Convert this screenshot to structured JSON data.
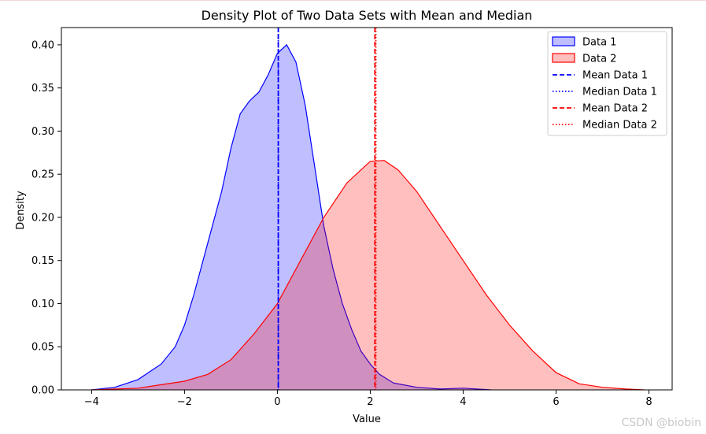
{
  "chart_data": {
    "type": "area",
    "title": "Density Plot of Two Data Sets with Mean and Median",
    "xlabel": "Value",
    "ylabel": "Density",
    "xlim": [
      -4.65,
      8.5
    ],
    "ylim": [
      0,
      0.42
    ],
    "xticks": [
      -4,
      -2,
      0,
      2,
      4,
      6,
      8
    ],
    "yticks": [
      0.0,
      0.05,
      0.1,
      0.15,
      0.2,
      0.25,
      0.3,
      0.35,
      0.4
    ],
    "xtick_labels": [
      "−4",
      "−2",
      "0",
      "2",
      "4",
      "6",
      "8"
    ],
    "ytick_labels": [
      "0.00",
      "0.05",
      "0.10",
      "0.15",
      "0.20",
      "0.25",
      "0.30",
      "0.35",
      "0.40"
    ],
    "grid": false,
    "legend_position": "top-right",
    "series": [
      {
        "name": "Data 1",
        "color": "#0000ff",
        "fill": "#bfbfff",
        "x": [
          -4.0,
          -3.5,
          -3.0,
          -2.5,
          -2.2,
          -2.0,
          -1.8,
          -1.5,
          -1.2,
          -1.0,
          -0.8,
          -0.6,
          -0.4,
          -0.2,
          0.0,
          0.2,
          0.4,
          0.6,
          0.8,
          1.0,
          1.2,
          1.4,
          1.6,
          1.8,
          2.0,
          2.2,
          2.5,
          3.0,
          3.5,
          4.0,
          4.6
        ],
        "y": [
          0.0,
          0.003,
          0.012,
          0.03,
          0.05,
          0.075,
          0.11,
          0.17,
          0.23,
          0.28,
          0.32,
          0.335,
          0.345,
          0.365,
          0.39,
          0.4,
          0.38,
          0.33,
          0.26,
          0.19,
          0.14,
          0.1,
          0.07,
          0.045,
          0.03,
          0.018,
          0.008,
          0.003,
          0.001,
          0.002,
          0.0
        ]
      },
      {
        "name": "Data 2",
        "color": "#ff0000",
        "fill": "#ffbfbf",
        "x": [
          -4.0,
          -3.0,
          -2.5,
          -2.0,
          -1.5,
          -1.0,
          -0.5,
          0.0,
          0.5,
          1.0,
          1.5,
          2.0,
          2.3,
          2.6,
          3.0,
          3.5,
          4.0,
          4.5,
          5.0,
          5.5,
          6.0,
          6.5,
          7.0,
          7.5,
          7.9
        ],
        "y": [
          0.0,
          0.002,
          0.006,
          0.01,
          0.018,
          0.035,
          0.065,
          0.1,
          0.15,
          0.2,
          0.24,
          0.265,
          0.266,
          0.255,
          0.23,
          0.19,
          0.15,
          0.11,
          0.075,
          0.045,
          0.02,
          0.007,
          0.003,
          0.001,
          0.0
        ]
      }
    ],
    "vlines": [
      {
        "name": "Mean Data 1",
        "x": 0.02,
        "color": "#0000ff",
        "style": "dashed"
      },
      {
        "name": "Median Data 1",
        "x": 0.02,
        "color": "#0000ff",
        "style": "dotted"
      },
      {
        "name": "Mean Data 2",
        "x": 2.1,
        "color": "#ff0000",
        "style": "dashed"
      },
      {
        "name": "Median Data 2",
        "x": 2.12,
        "color": "#ff0000",
        "style": "dotted"
      }
    ]
  },
  "watermark": "CSDN @biobin"
}
